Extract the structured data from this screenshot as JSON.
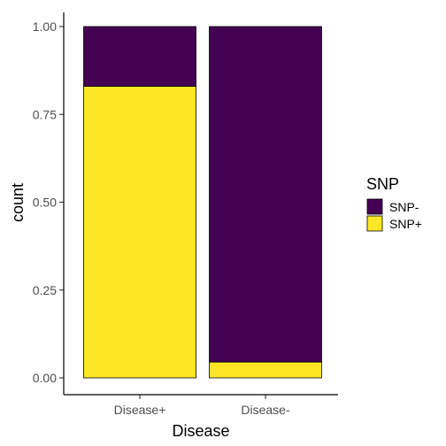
{
  "chart_data": {
    "type": "bar",
    "stacked": true,
    "xlabel": "Disease",
    "ylabel": "count",
    "categories": [
      "Disease+",
      "Disease-"
    ],
    "series": [
      {
        "name": "SNP-",
        "values": [
          0.17,
          0.955
        ],
        "color": "#440154"
      },
      {
        "name": "SNP+",
        "values": [
          0.83,
          0.045
        ],
        "color": "#FDE725"
      }
    ],
    "stack_order_bottom_to_top": [
      "SNP+",
      "SNP-"
    ],
    "ylim": [
      0,
      1
    ],
    "yticks": [
      "0.00",
      "0.25",
      "0.50",
      "0.75",
      "1.00"
    ],
    "grid": false,
    "legend": {
      "title": "SNP",
      "position": "right",
      "items": [
        "SNP-",
        "SNP+"
      ]
    }
  }
}
